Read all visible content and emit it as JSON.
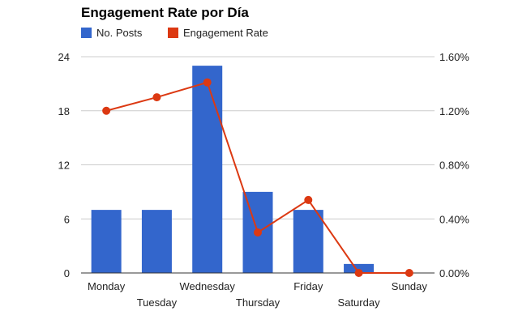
{
  "chart_data": {
    "type": "bar+line",
    "title": "Engagement Rate por Día",
    "categories": [
      "Monday",
      "Tuesday",
      "Wednesday",
      "Thursday",
      "Friday",
      "Saturday",
      "Sunday"
    ],
    "series": [
      {
        "name": "No. Posts",
        "type": "bar",
        "axis": "left",
        "color": "#3366cc",
        "values": [
          7,
          7,
          23,
          9,
          7,
          1,
          0
        ]
      },
      {
        "name": "Engagement Rate",
        "type": "line",
        "axis": "right",
        "color": "#dc3912",
        "values": [
          1.2,
          1.3,
          1.41,
          0.3,
          0.54,
          0.0,
          0.0
        ]
      }
    ],
    "left_axis": {
      "ylim": [
        0,
        24
      ],
      "ticks": [
        "0",
        "6",
        "12",
        "18",
        "24"
      ]
    },
    "right_axis": {
      "ylim": [
        0,
        1.6
      ],
      "ticks": [
        "0.00%",
        "0.40%",
        "0.80%",
        "1.20%",
        "1.60%"
      ]
    },
    "grid": true,
    "legend": "top-left"
  }
}
